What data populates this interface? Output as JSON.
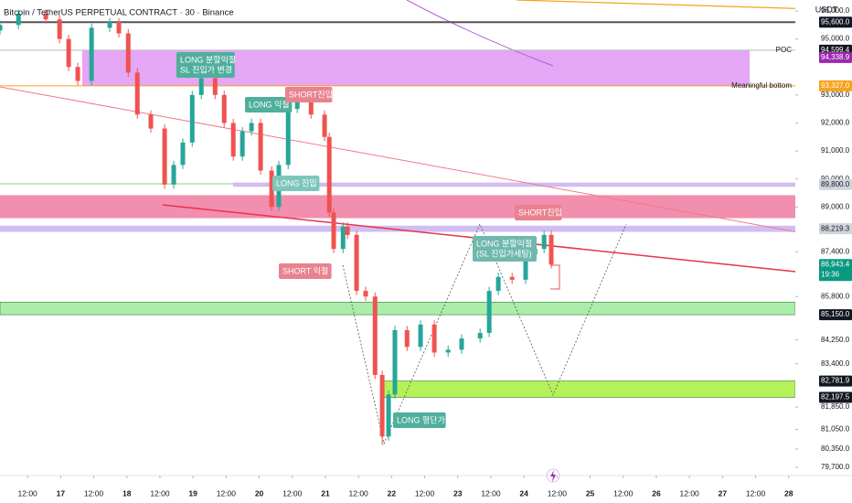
{
  "chart_data": {
    "type": "candlestick",
    "title": "Bitcoin / TetherUS PERPETUAL CONTRACT · 30 · Binance",
    "currency": "USDT",
    "up_color": "#26a69a",
    "down_color": "#ef5350",
    "t": [
      -10,
      -3.3,
      6.6,
      11.6,
      14.9,
      18.2,
      23.2,
      29.8,
      33.1,
      36.5,
      39.8,
      44.7,
      49.7,
      53,
      56.3,
      59.7,
      63,
      68,
      71.3,
      74.6,
      77.9,
      81.2,
      84.5,
      88.5,
      91.1,
      94.5,
      97.8,
      102.8,
      107.7,
      109.4,
      111,
      114.4,
      116,
      119.3,
      122.6,
      126,
      128.6,
      130.9,
      133.2,
      137.6,
      142.5,
      147.5,
      152.5,
      157.4,
      164.1,
      167.4,
      170.7,
      175.7,
      180.6,
      184,
      187.3,
      189.9
    ],
    "open": [
      95300,
      95500,
      95900,
      95700,
      95000,
      94000,
      93500,
      95400,
      95600,
      95200,
      93800,
      92300,
      91800,
      89800,
      90500,
      91300,
      93000,
      93600,
      93000,
      92000,
      90800,
      91700,
      92000,
      90300,
      89000,
      90500,
      92500,
      92800,
      92300,
      91500,
      88800,
      87500,
      88300,
      88000,
      86000,
      85800,
      83000,
      80800,
      82300,
      84600,
      84000,
      84800,
      83800,
      83900,
      84300,
      84500,
      86000,
      86500,
      86400,
      87300,
      87500,
      88000
    ],
    "high": [
      95650,
      96050,
      96050,
      95850,
      95150,
      94150,
      95550,
      95750,
      95750,
      95350,
      93950,
      92450,
      91950,
      90650,
      91450,
      93150,
      93750,
      93750,
      93150,
      92150,
      91850,
      92150,
      92150,
      90450,
      90650,
      92650,
      92950,
      92950,
      92450,
      91650,
      88950,
      88450,
      88450,
      88150,
      86150,
      85950,
      83150,
      82450,
      84750,
      84750,
      84950,
      84950,
      84050,
      84450,
      84650,
      86150,
      86650,
      86650,
      87450,
      87650,
      88150,
      88150
    ],
    "low": [
      95150,
      95350,
      95550,
      94850,
      93850,
      93350,
      93350,
      95250,
      95050,
      93650,
      92150,
      91650,
      89650,
      89650,
      90350,
      91150,
      92850,
      92850,
      91850,
      90650,
      90650,
      91550,
      90150,
      88850,
      88850,
      90350,
      92350,
      92150,
      91350,
      88650,
      87350,
      87350,
      87850,
      85850,
      85650,
      82850,
      80500,
      80650,
      82150,
      83850,
      83850,
      83650,
      83650,
      83750,
      84150,
      84350,
      85850,
      86250,
      86250,
      87150,
      87350,
      86800
    ],
    "close": [
      95500,
      95900,
      95700,
      95000,
      94000,
      93500,
      95400,
      95600,
      95200,
      93800,
      92300,
      91800,
      89800,
      90500,
      91300,
      93000,
      93600,
      93000,
      92000,
      90800,
      91700,
      92000,
      90300,
      89000,
      90500,
      92500,
      92800,
      92300,
      91500,
      88800,
      87500,
      88300,
      88000,
      86000,
      85800,
      83000,
      80800,
      82300,
      84600,
      84000,
      84800,
      83800,
      83900,
      84300,
      84500,
      86000,
      86500,
      86400,
      87300,
      87500,
      88000,
      86943.4
    ],
    "xlim": [
      -10,
      278.4
    ],
    "xticks": [
      {
        "value": 0,
        "label": "12:00"
      },
      {
        "value": 12,
        "label": "17"
      },
      {
        "value": 24,
        "label": "12:00"
      },
      {
        "value": 36,
        "label": "18"
      },
      {
        "value": 48,
        "label": "12:00"
      },
      {
        "value": 60,
        "label": "19"
      },
      {
        "value": 72,
        "label": "12:00"
      },
      {
        "value": 84,
        "label": "20"
      },
      {
        "value": 96,
        "label": "12:00"
      },
      {
        "value": 108,
        "label": "21"
      },
      {
        "value": 120,
        "label": "12:00"
      },
      {
        "value": 132,
        "label": "22"
      },
      {
        "value": 144,
        "label": "12:00"
      },
      {
        "value": 156,
        "label": "23"
      },
      {
        "value": 168,
        "label": "12:00"
      },
      {
        "value": 180,
        "label": "24"
      },
      {
        "value": 192,
        "label": "12:00"
      },
      {
        "value": 204,
        "label": "25"
      },
      {
        "value": 216,
        "label": "12:00"
      },
      {
        "value": 228,
        "label": "26"
      },
      {
        "value": 240,
        "label": "12:00"
      },
      {
        "value": 252,
        "label": "27"
      },
      {
        "value": 264,
        "label": "12:00"
      },
      {
        "value": 276,
        "label": "28"
      }
    ],
    "ylim": [
      79404,
      96392
    ],
    "yticks": [
      {
        "value": 96000,
        "label": "96,000.0"
      },
      {
        "value": 95000,
        "label": "95,000.0"
      },
      {
        "value": 93000,
        "label": "93,000.0"
      },
      {
        "value": 92000,
        "label": "92,000.0"
      },
      {
        "value": 91000,
        "label": "91,000.0"
      },
      {
        "value": 90000,
        "label": "90,000.0"
      },
      {
        "value": 89000,
        "label": "89,000.0"
      },
      {
        "value": 87400,
        "label": "87,400.0"
      },
      {
        "value": 85800,
        "label": "85,800.0"
      },
      {
        "value": 84250,
        "label": "84,250.0"
      },
      {
        "value": 83400,
        "label": "83,400.0"
      },
      {
        "value": 81850,
        "label": "81,850.0"
      },
      {
        "value": 81050,
        "label": "81,050.0"
      },
      {
        "value": 80350,
        "label": "80,350.0"
      },
      {
        "value": 79700,
        "label": "79,700.0"
      }
    ],
    "levels": [
      {
        "value": 95600,
        "label": "95,600.0",
        "color": "#131722",
        "line": true
      },
      {
        "value": 94599.4,
        "label": "94,599.4",
        "color": "#131722",
        "name": "POC",
        "line": true
      },
      {
        "value": 94338.9,
        "label": "94,338.9",
        "color": "#9c27b0",
        "line": false
      },
      {
        "value": 93327,
        "label": "93,327.0",
        "color": "#f7a21b",
        "name": "Meaningful bottom",
        "line": true
      },
      {
        "value": 89800,
        "label": "89,800.0",
        "color": "#d1d4dc",
        "line": false
      },
      {
        "value": 88219.3,
        "label": "88,219.3",
        "color": "#d1d4dc",
        "line": false
      },
      {
        "value": 86943.4,
        "label": "86,943.4",
        "color": "#089981",
        "countdown": "19:36",
        "line": false
      },
      {
        "value": 85150,
        "label": "85,150.0",
        "color": "#131722",
        "line": false
      },
      {
        "value": 82781.9,
        "label": "82,781.9",
        "color": "#131722",
        "line": false
      },
      {
        "value": 82197.5,
        "label": "82,197.5",
        "color": "#131722",
        "line": false
      }
    ],
    "zones": [
      {
        "from": 94600,
        "to": 93327,
        "color": "#e196f5"
      },
      {
        "from": 89420,
        "to": 88600,
        "color": "#f07aa0"
      },
      {
        "from": 89870,
        "to": 89720,
        "color": "#c9b2ee"
      },
      {
        "from": 88330,
        "to": 88110,
        "color": "#c9b2ee"
      },
      {
        "from": 85600,
        "to": 85150,
        "color": "#8ee88e"
      },
      {
        "from": 82781.9,
        "to": 82197.5,
        "color": "#a8f03c"
      }
    ],
    "annotations": [
      {
        "lines": [
          "LONG 분할익절",
          "SL 진입가 변경"
        ],
        "color": "#4fae9c"
      },
      {
        "lines": [
          "LONG 익절"
        ],
        "color": "#4fae9c"
      },
      {
        "lines": [
          "SHORT진입"
        ],
        "color": "#e9828f"
      },
      {
        "lines": [
          "LONG 진입"
        ],
        "color": "#7fc6ba"
      },
      {
        "lines": [
          "SHORT 익절"
        ],
        "color": "#e9828f"
      },
      {
        "lines": [
          "LONG 분할익절",
          "(SL 진입가세팅)"
        ],
        "color": "#6fb8ad"
      },
      {
        "lines": [
          "SHORT진입"
        ],
        "color": "#e9828f"
      },
      {
        "lines": [
          "LONG 평단가"
        ],
        "color": "#4fae9c"
      }
    ]
  }
}
